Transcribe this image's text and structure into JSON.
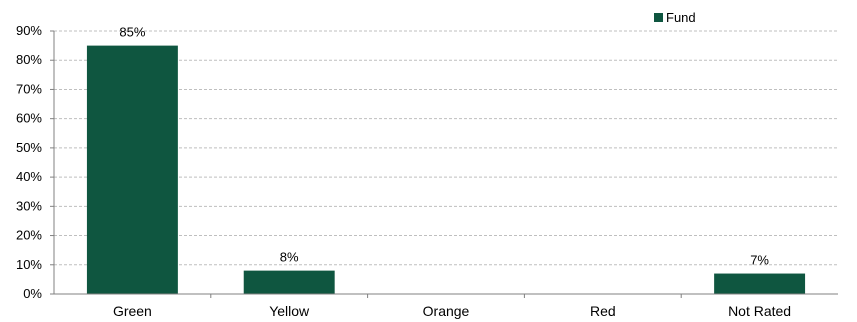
{
  "chart_data": {
    "type": "bar",
    "categories": [
      "Green",
      "Yellow",
      "Orange",
      "Red",
      "Not Rated"
    ],
    "series": [
      {
        "name": "Fund",
        "values": [
          85,
          8,
          0,
          0,
          7
        ],
        "color": "#0f5640"
      }
    ],
    "data_labels": [
      "85%",
      "8%",
      "",
      "",
      "7%"
    ],
    "y_ticks": [
      "0%",
      "10%",
      "20%",
      "30%",
      "40%",
      "50%",
      "60%",
      "70%",
      "80%",
      "90%"
    ],
    "ylim": [
      0,
      90
    ],
    "grid": true,
    "grid_color": "#bfbfbf",
    "legend_position": "top-right"
  }
}
